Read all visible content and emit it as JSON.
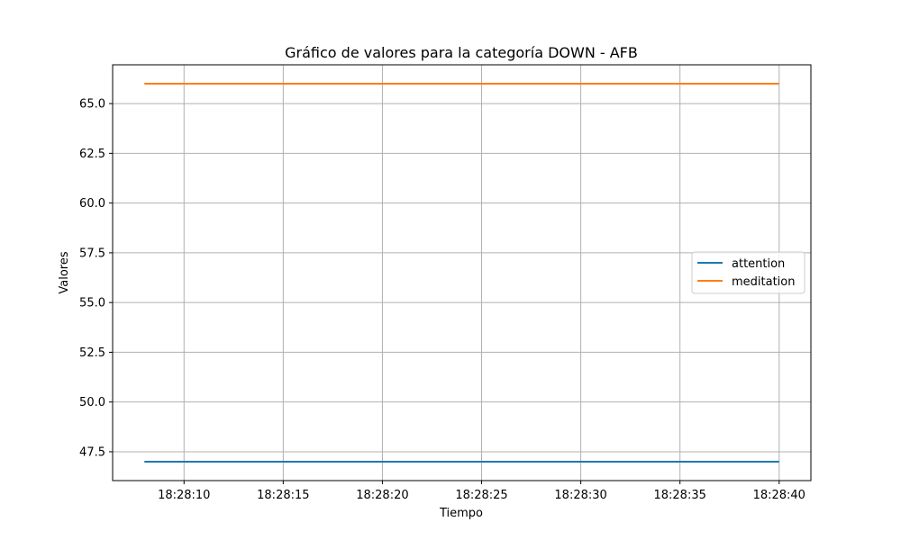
{
  "chart_data": {
    "type": "line",
    "title": "Gráfico de valores para la categoría DOWN - AFB",
    "xlabel": "Tiempo",
    "ylabel": "Valores",
    "x_type": "time",
    "x": [
      "18:28:08",
      "18:28:40"
    ],
    "xlim": [
      "18:28:06.4",
      "18:28:41.6"
    ],
    "x_ticks": [
      "18:28:10",
      "18:28:15",
      "18:28:20",
      "18:28:25",
      "18:28:30",
      "18:28:35",
      "18:28:40"
    ],
    "ylim": [
      46.05,
      66.95
    ],
    "y_ticks": [
      "47.5",
      "50.0",
      "52.5",
      "55.0",
      "57.5",
      "60.0",
      "62.5",
      "65.0"
    ],
    "series": [
      {
        "name": "attention",
        "values": [
          47,
          47
        ],
        "color": "#1f77b4"
      },
      {
        "name": "meditation",
        "values": [
          66,
          66
        ],
        "color": "#ff7f0e"
      }
    ],
    "grid": true,
    "legend_position": "center-right"
  }
}
